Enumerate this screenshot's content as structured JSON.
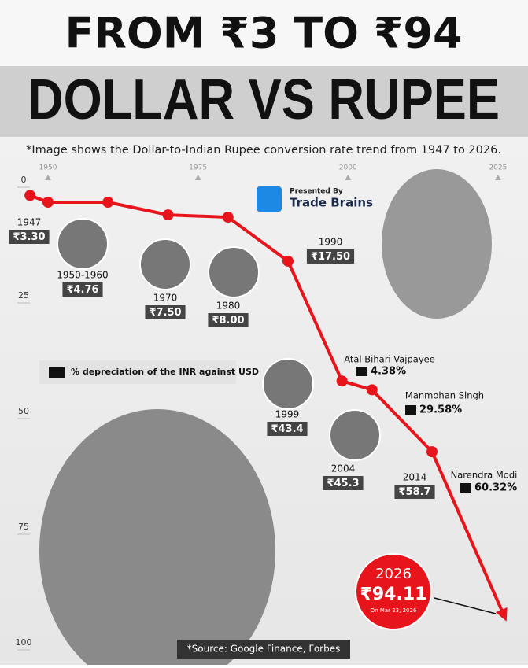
{
  "chart_data": {
    "type": "line",
    "title": "FROM ₹3 TO ₹94",
    "headline": "DOLLAR VS RUPEE",
    "subtitle": "*Image shows the Dollar-to-Indian Rupee conversion rate trend from 1947 to 2026.",
    "presented_by": "Presented By",
    "brand": "Trade Brains",
    "source": "*Source: Google Finance, Forbes",
    "x": [
      1947,
      1950,
      1960,
      1970,
      1980,
      1990,
      1999,
      2004,
      2014,
      2026
    ],
    "point_labels": [
      "1947",
      "1950-1960",
      null,
      "1970",
      "1980",
      "1990",
      "1999",
      "2004",
      "2014",
      "2026"
    ],
    "series": [
      {
        "color": "#e8141b",
        "values": [
          3.3,
          4.76,
          4.76,
          7.5,
          8.0,
          17.5,
          43.4,
          45.3,
          58.7,
          94.11
        ],
        "value_labels": [
          "₹3.30",
          "₹4.76",
          null,
          "₹7.50",
          "₹8.00",
          "₹17.50",
          "₹43.4",
          "₹45.3",
          "₹58.7",
          "₹94.11"
        ]
      }
    ],
    "latest_date": "On Mar 23, 2026",
    "xlim": [
      1942,
      2030
    ],
    "xticks": [
      1950,
      1975,
      2000,
      2025
    ],
    "ylim": [
      0,
      100
    ],
    "yticks": [
      0,
      25,
      50,
      75,
      100
    ],
    "y_inverted": true,
    "depreciation": {
      "label": "% depreciation of the INR against USD",
      "items": [
        {
          "name": "Atal Bihari Vajpayee",
          "value": 4.38,
          "value_label": "4.38%"
        },
        {
          "name": "Manmohan Singh",
          "value": 29.58,
          "value_label": "29.58%"
        },
        {
          "name": "Narendra Modi",
          "value": 60.32,
          "value_label": "60.32%"
        }
      ]
    }
  }
}
